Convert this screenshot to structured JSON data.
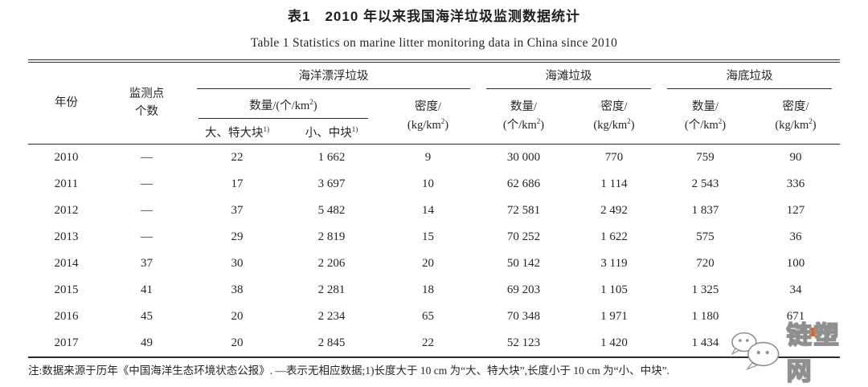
{
  "titles": {
    "cn": "表1　2010 年以来我国海洋垃圾监测数据统计",
    "en": "Table 1 Statistics on marine litter monitoring data in China since 2010"
  },
  "header": {
    "year": "年份",
    "points_line1": "监测点",
    "points_line2": "个数",
    "group_floating": "海洋漂浮垃圾",
    "group_beach": "海滩垃圾",
    "group_seabed": "海底垃圾",
    "qty_inline": {
      "pre": "数量/(个/km",
      "sup": "2",
      "post": ")"
    },
    "qty_2line": {
      "line1": "数量/",
      "pre": "(个/km",
      "sup": "2",
      "post": ")"
    },
    "density_2line": {
      "line1": "密度/",
      "pre": "(kg/km",
      "sup": "2",
      "post": ")"
    },
    "size_large": {
      "text": "大、特大块",
      "sup": "1)"
    },
    "size_small": {
      "text": "小、中块",
      "sup": "1)"
    }
  },
  "rows": [
    {
      "year": "2010",
      "points": "—",
      "large": "22",
      "small": "1 662",
      "fdensity": "9",
      "bqty": "30 000",
      "bdensity": "770",
      "sqty": "759",
      "sdensity": "90"
    },
    {
      "year": "2011",
      "points": "—",
      "large": "17",
      "small": "3 697",
      "fdensity": "10",
      "bqty": "62 686",
      "bdensity": "1 114",
      "sqty": "2 543",
      "sdensity": "336"
    },
    {
      "year": "2012",
      "points": "—",
      "large": "37",
      "small": "5 482",
      "fdensity": "14",
      "bqty": "72 581",
      "bdensity": "2 492",
      "sqty": "1 837",
      "sdensity": "127"
    },
    {
      "year": "2013",
      "points": "—",
      "large": "29",
      "small": "2 819",
      "fdensity": "15",
      "bqty": "70 252",
      "bdensity": "1 622",
      "sqty": "575",
      "sdensity": "36"
    },
    {
      "year": "2014",
      "points": "37",
      "large": "30",
      "small": "2 206",
      "fdensity": "20",
      "bqty": "50 142",
      "bdensity": "3 119",
      "sqty": "720",
      "sdensity": "100"
    },
    {
      "year": "2015",
      "points": "41",
      "large": "38",
      "small": "2 281",
      "fdensity": "18",
      "bqty": "69 203",
      "bdensity": "1 105",
      "sqty": "1 325",
      "sdensity": "34"
    },
    {
      "year": "2016",
      "points": "45",
      "large": "20",
      "small": "2 234",
      "fdensity": "65",
      "bqty": "70 348",
      "bdensity": "1 971",
      "sqty": "1 180",
      "sdensity": "671"
    },
    {
      "year": "2017",
      "points": "49",
      "large": "20",
      "small": "2 845",
      "fdensity": "22",
      "bqty": "52 123",
      "bdensity": "1 420",
      "sqty": "1 434",
      "sdensity": ""
    }
  ],
  "note": "注:数据来源于历年《中国海洋生态环境状态公报》. —表示无相应数据;1)长度大于 10 cm 为“大、特大块”,长度小于 10 cm 为“小、中块”.",
  "watermark": {
    "icon": "wechat-icon",
    "text": "链塑网"
  }
}
